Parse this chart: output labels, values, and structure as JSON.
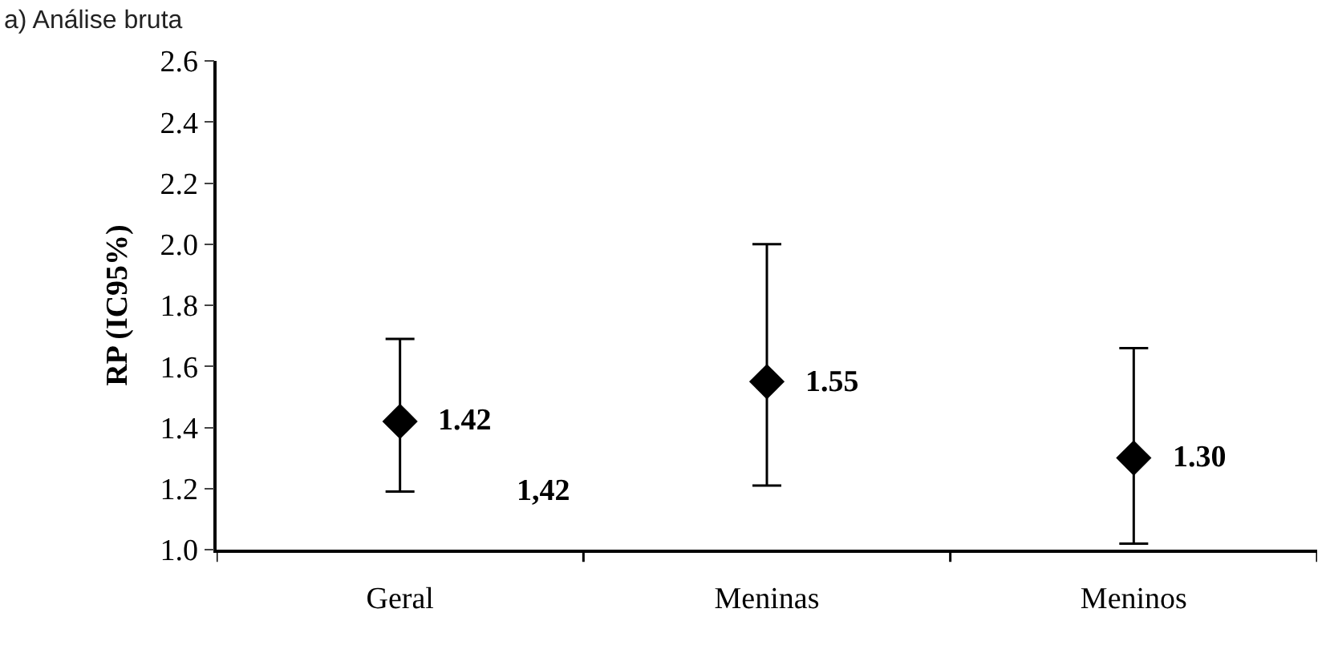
{
  "chart_data": {
    "type": "scatter",
    "title": "a) Análise bruta",
    "ylabel": "RP (IC95%)",
    "categories": [
      "Geral",
      "Meninas",
      "Meninos"
    ],
    "values": [
      1.42,
      1.55,
      1.3
    ],
    "color": "#000000",
    "marker": "diamond",
    "errors": [
      [
        1.19,
        1.69
      ],
      [
        1.21,
        2.0
      ],
      [
        1.02,
        1.66
      ]
    ],
    "value_labels": [
      "1.42",
      "1.55",
      "1.30"
    ],
    "annotations": [
      "1,42"
    ],
    "ylim": [
      1.0,
      2.6
    ],
    "yticks": [
      {
        "value": 1.0,
        "label": "1.0"
      },
      1.2,
      1.4,
      1.6,
      1.8,
      {
        "value": 2.0,
        "label": "2.0"
      },
      2.2,
      2.4,
      2.6
    ],
    "legend": false
  }
}
